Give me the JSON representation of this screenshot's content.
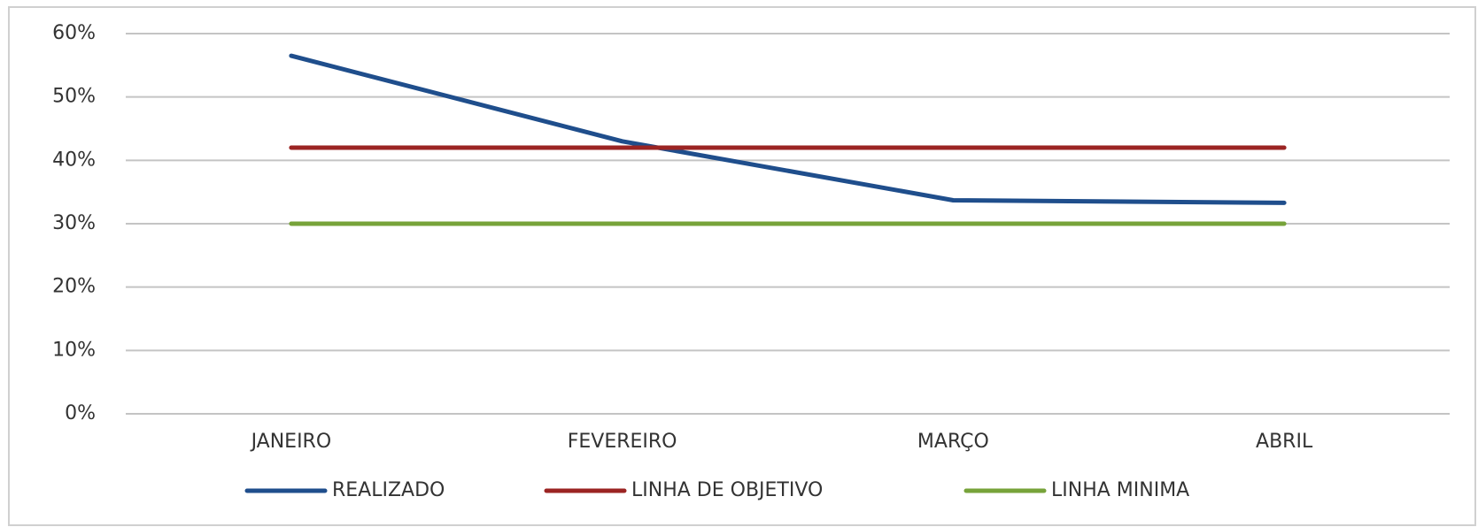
{
  "chart_data": {
    "type": "line",
    "categories": [
      "JANEIRO",
      "FEVEREIRO",
      "MARÇO",
      "ABRIL"
    ],
    "series": [
      {
        "name": "REALIZADO",
        "color": "#1f4e8c",
        "values": [
          56.5,
          43,
          33.7,
          33.3
        ]
      },
      {
        "name": "LINHA DE OBJETIVO",
        "color": "#9b2423",
        "values": [
          42,
          42,
          42,
          42
        ]
      },
      {
        "name": "LINHA MINIMA",
        "color": "#77a33a",
        "values": [
          30,
          30,
          30,
          30
        ]
      }
    ],
    "ylim": [
      0,
      60
    ],
    "yticks": [
      {
        "value": 0,
        "label": "0%"
      },
      {
        "value": 10,
        "label": "10%"
      },
      {
        "value": 20,
        "label": "20%"
      },
      {
        "value": 30,
        "label": "30%"
      },
      {
        "value": 40,
        "label": "40%"
      },
      {
        "value": 50,
        "label": "50%"
      },
      {
        "value": 60,
        "label": "60%"
      }
    ],
    "grid": true,
    "legend": "bottom"
  }
}
